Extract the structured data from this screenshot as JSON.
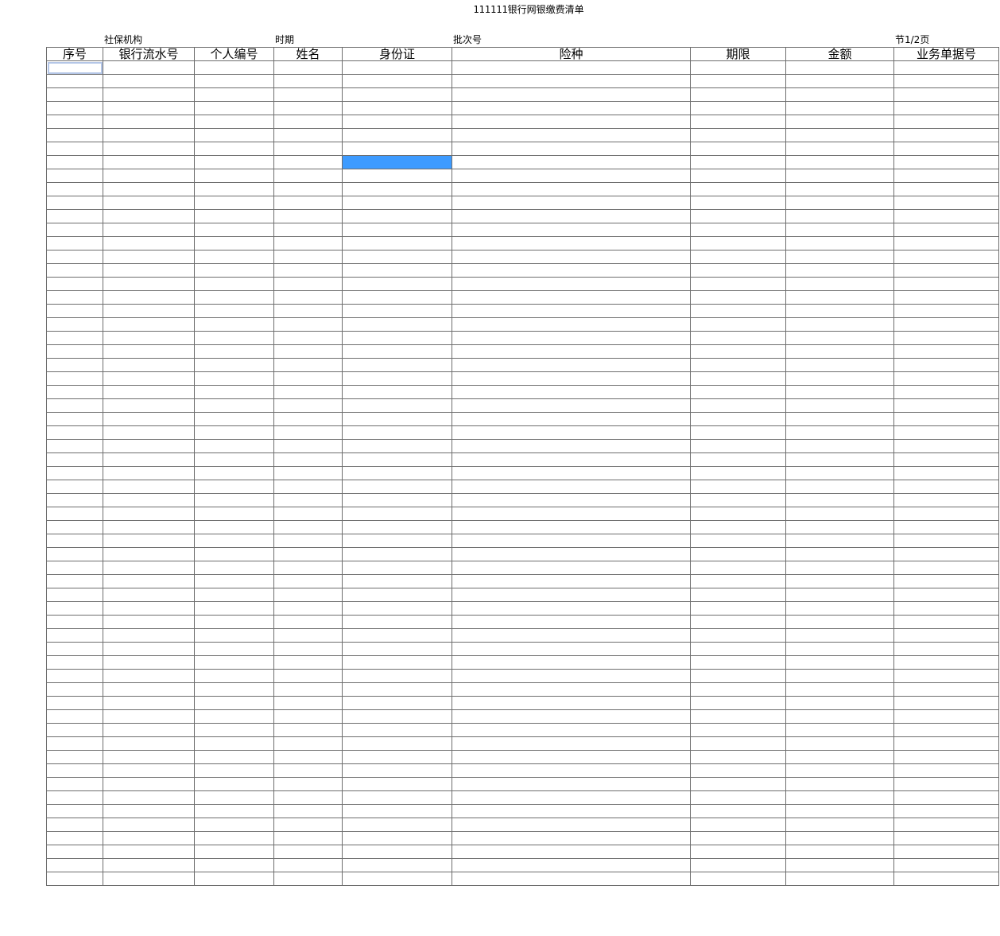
{
  "report": {
    "title": "111111银行网银缴费清单",
    "meta": {
      "agency_label": "社保机构",
      "period_label": "时期",
      "batch_label": "批次号",
      "page_label": "节1/2页"
    }
  },
  "table": {
    "columns": [
      {
        "key": "seq",
        "label": "序号"
      },
      {
        "key": "bank_serial",
        "label": "银行流水号"
      },
      {
        "key": "personal_id",
        "label": "个人编号"
      },
      {
        "key": "name",
        "label": "姓名"
      },
      {
        "key": "id_card",
        "label": "身份证"
      },
      {
        "key": "insurance_type",
        "label": "险种"
      },
      {
        "key": "term",
        "label": "期限"
      },
      {
        "key": "amount",
        "label": "金额"
      },
      {
        "key": "doc_no",
        "label": "业务单据号"
      }
    ],
    "row_count": 61,
    "active_cell": {
      "row": 1,
      "column": "seq"
    },
    "highlighted_cell": {
      "row": 8,
      "column": "id_card"
    },
    "highlight_color": "#3d9bff",
    "grid_color": "#6e6e6e"
  }
}
